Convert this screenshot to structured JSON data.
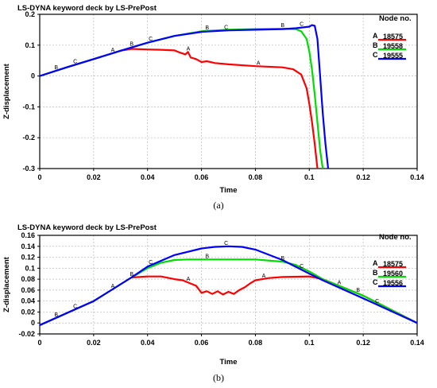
{
  "chart_data": [
    {
      "type": "line",
      "title": "LS-DYNA keyword deck by LS-PrePost",
      "xlabel": "Time",
      "ylabel": "Z-displacement",
      "xlim": [
        0,
        0.14
      ],
      "ylim": [
        -0.3,
        0.2
      ],
      "xticks": [
        0,
        0.02,
        0.04,
        0.06,
        0.08,
        0.1,
        0.12,
        0.14
      ],
      "xtick_labels": [
        "0",
        "0.02",
        "0.04",
        "0.06",
        "0.08",
        "0.1",
        "0.12",
        "0.14"
      ],
      "yticks": [
        -0.3,
        -0.2,
        -0.1,
        0,
        0.1,
        0.2
      ],
      "ytick_labels": [
        "-0.3",
        "-0.2",
        "-0.1",
        "0",
        "0.1",
        "0.2"
      ],
      "grid": true,
      "legend_title": "Node no.",
      "legend_position": "top-right",
      "caption": "(a)",
      "series": [
        {
          "name": "18575",
          "marker": "A",
          "color": "#ff0000",
          "x": [
            0,
            0.01,
            0.02,
            0.03,
            0.034,
            0.04,
            0.045,
            0.05,
            0.052,
            0.054,
            0.055,
            0.056,
            0.058,
            0.06,
            0.062,
            0.065,
            0.07,
            0.08,
            0.09,
            0.094,
            0.097,
            0.099,
            0.1,
            0.101,
            0.102,
            0.103
          ],
          "y": [
            0,
            0.028,
            0.055,
            0.082,
            0.088,
            0.086,
            0.085,
            0.083,
            0.076,
            0.07,
            0.078,
            0.06,
            0.055,
            0.045,
            0.048,
            0.042,
            0.038,
            0.032,
            0.028,
            0.022,
            0.005,
            -0.04,
            -0.09,
            -0.15,
            -0.22,
            -0.3
          ],
          "marker_x": [
            0.027,
            0.055,
            0.081
          ]
        },
        {
          "name": "19558",
          "marker": "B",
          "color": "#00dd00",
          "x": [
            0,
            0.01,
            0.02,
            0.03,
            0.04,
            0.05,
            0.06,
            0.07,
            0.08,
            0.09,
            0.095,
            0.097,
            0.099,
            0.1,
            0.101,
            0.102,
            0.103,
            0.104,
            0.105
          ],
          "y": [
            0,
            0.028,
            0.055,
            0.082,
            0.108,
            0.13,
            0.145,
            0.15,
            0.152,
            0.153,
            0.152,
            0.145,
            0.12,
            0.08,
            0.02,
            -0.06,
            -0.15,
            -0.24,
            -0.3
          ],
          "marker_x": [
            0.006,
            0.034,
            0.062,
            0.09
          ]
        },
        {
          "name": "19555",
          "marker": "C",
          "color": "#0000ff",
          "x": [
            0,
            0.01,
            0.02,
            0.03,
            0.04,
            0.05,
            0.06,
            0.07,
            0.08,
            0.09,
            0.095,
            0.1,
            0.101,
            0.102,
            0.103,
            0.104,
            0.105,
            0.106,
            0.107
          ],
          "y": [
            0,
            0.028,
            0.055,
            0.082,
            0.108,
            0.13,
            0.143,
            0.148,
            0.15,
            0.152,
            0.155,
            0.16,
            0.165,
            0.163,
            0.12,
            0.0,
            -0.12,
            -0.22,
            -0.3
          ],
          "marker_x": [
            0.013,
            0.041,
            0.069,
            0.097
          ]
        }
      ]
    },
    {
      "type": "line",
      "title": "LS-DYNA keyword deck by LS-PrePost",
      "xlabel": "Time",
      "ylabel": "Z-displacement",
      "xlim": [
        0,
        0.14
      ],
      "ylim": [
        -0.02,
        0.16
      ],
      "xticks": [
        0,
        0.02,
        0.04,
        0.06,
        0.08,
        0.1,
        0.12,
        0.14
      ],
      "xtick_labels": [
        "0",
        "0.02",
        "0.04",
        "0.06",
        "0.08",
        "0.1",
        "0.12",
        "0.14"
      ],
      "yticks": [
        -0.02,
        0,
        0.02,
        0.04,
        0.06,
        0.08,
        0.1,
        0.12,
        0.14,
        0.16
      ],
      "ytick_labels": [
        "-0.02",
        "0",
        "0.02",
        "0.04",
        "0.06",
        "0.08",
        "0.1",
        "0.12",
        "0.14",
        "0.16"
      ],
      "grid": true,
      "legend_title": "Node no.",
      "legend_position": "top-right",
      "caption": "(b)",
      "series": [
        {
          "name": "18575",
          "marker": "A",
          "color": "#ff0000",
          "x": [
            0,
            0.02,
            0.034,
            0.04,
            0.045,
            0.05,
            0.053,
            0.056,
            0.058,
            0.06,
            0.062,
            0.064,
            0.066,
            0.068,
            0.07,
            0.072,
            0.074,
            0.076,
            0.078,
            0.08,
            0.085,
            0.09,
            0.1,
            0.105,
            0.12,
            0.14
          ],
          "y": [
            -0.004,
            0.04,
            0.083,
            0.085,
            0.085,
            0.08,
            0.078,
            0.072,
            0.068,
            0.055,
            0.058,
            0.053,
            0.058,
            0.052,
            0.057,
            0.053,
            0.06,
            0.065,
            0.072,
            0.078,
            0.082,
            0.084,
            0.085,
            0.08,
            0.05,
            0.0
          ],
          "marker_x": [
            0.027,
            0.055,
            0.083,
            0.111
          ]
        },
        {
          "name": "19560",
          "marker": "B",
          "color": "#00dd00",
          "x": [
            0,
            0.02,
            0.034,
            0.04,
            0.045,
            0.05,
            0.055,
            0.06,
            0.07,
            0.08,
            0.09,
            0.095,
            0.1,
            0.105,
            0.12,
            0.14
          ],
          "y": [
            -0.004,
            0.04,
            0.083,
            0.1,
            0.11,
            0.115,
            0.116,
            0.116,
            0.116,
            0.116,
            0.112,
            0.106,
            0.094,
            0.08,
            0.05,
            0.0
          ],
          "marker_x": [
            0.006,
            0.034,
            0.062,
            0.09,
            0.118
          ]
        },
        {
          "name": "19556",
          "marker": "C",
          "color": "#0000ff",
          "x": [
            0,
            0.02,
            0.034,
            0.04,
            0.05,
            0.06,
            0.065,
            0.07,
            0.075,
            0.08,
            0.09,
            0.1,
            0.105,
            0.12,
            0.14
          ],
          "y": [
            -0.004,
            0.04,
            0.083,
            0.103,
            0.124,
            0.136,
            0.139,
            0.14,
            0.139,
            0.134,
            0.115,
            0.09,
            0.078,
            0.045,
            0.0
          ],
          "marker_x": [
            0.013,
            0.041,
            0.069,
            0.097,
            0.125
          ]
        }
      ]
    }
  ]
}
